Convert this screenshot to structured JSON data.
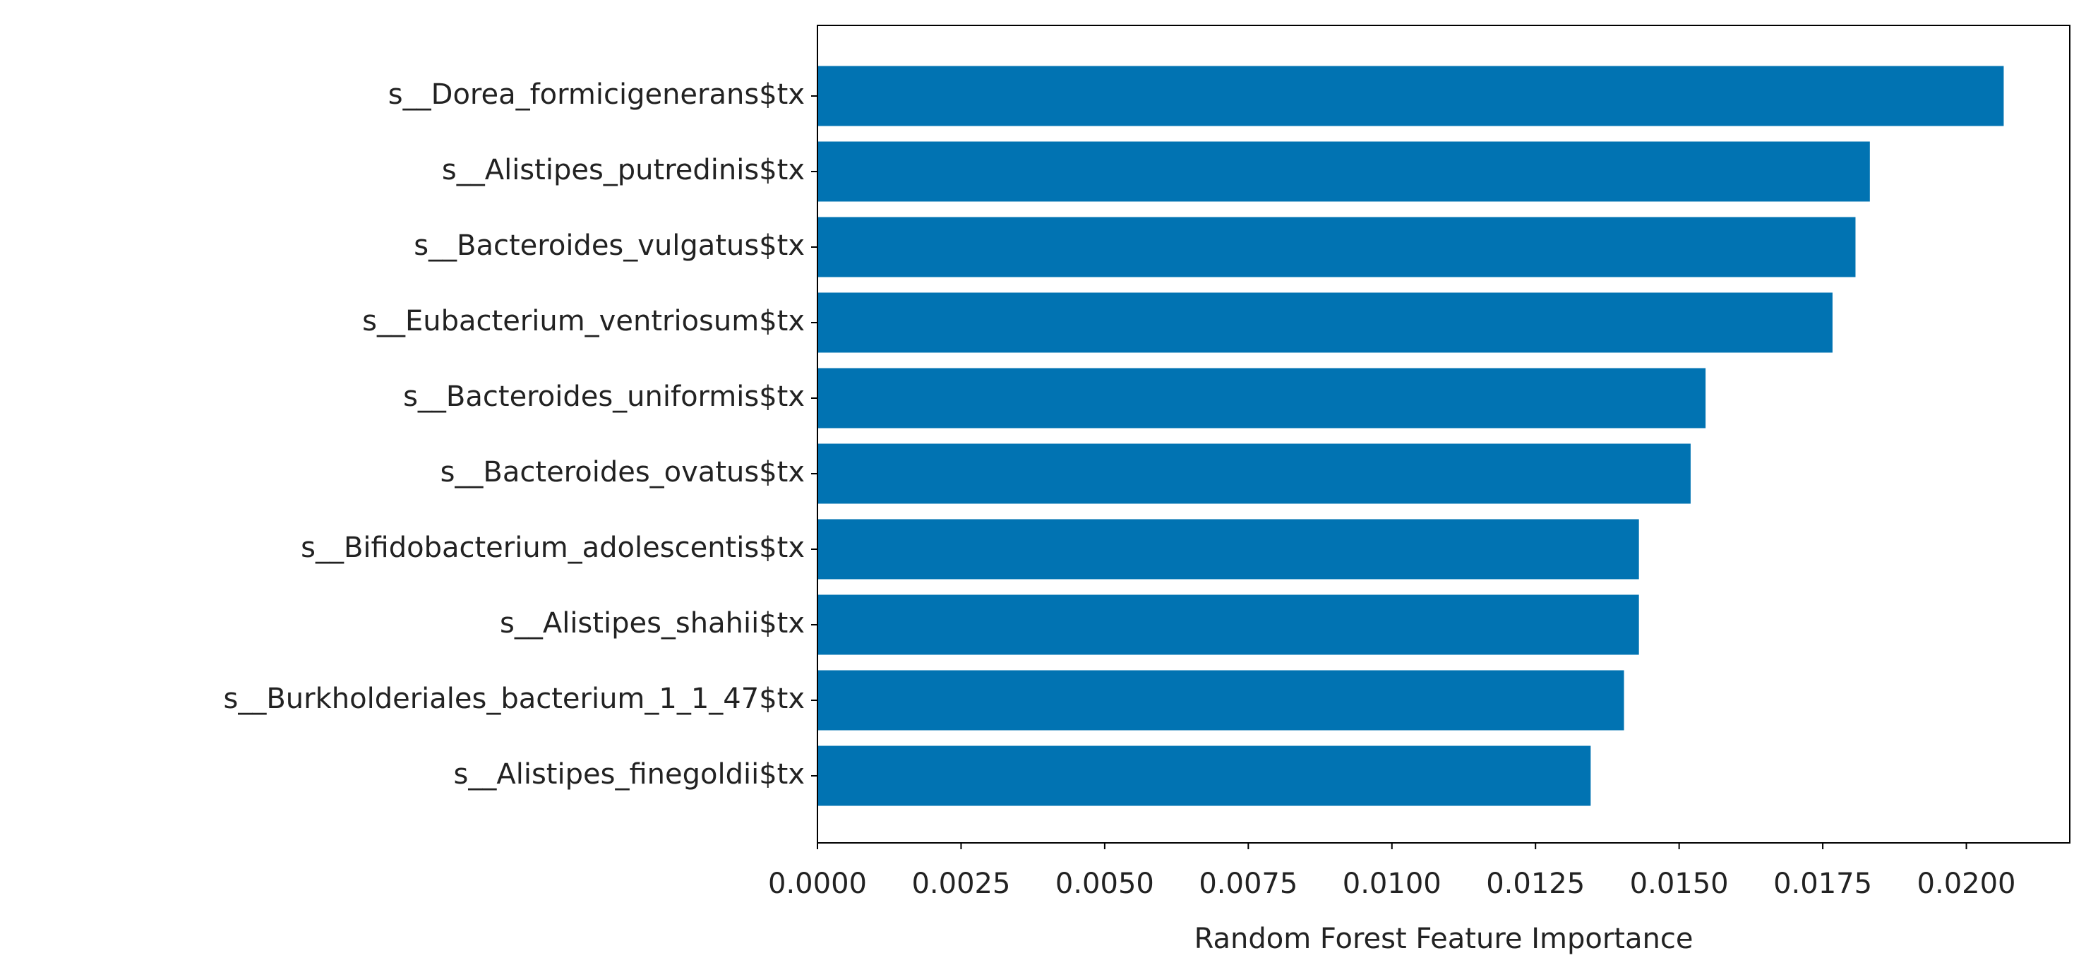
{
  "chart_data": {
    "type": "barh",
    "xlabel": "Random Forest Feature Importance",
    "categories": [
      "s__Dorea_formicigenerans$tx",
      "s__Alistipes_putredinis$tx",
      "s__Bacteroides_vulgatus$tx",
      "s__Eubacterium_ventriosum$tx",
      "s__Bacteroides_uniformis$tx",
      "s__Bacteroides_ovatus$tx",
      "s__Bifidobacterium_adolescentis$tx",
      "s__Alistipes_shahii$tx",
      "s__Burkholderiales_bacterium_1_1_47$tx",
      "s__Alistipes_finegoldii$tx"
    ],
    "values": [
      0.02065,
      0.01832,
      0.01807,
      0.01767,
      0.01546,
      0.0152,
      0.0143,
      0.0143,
      0.01404,
      0.01346
    ],
    "color": "#0173b2",
    "xlim": [
      0,
      0.0218
    ],
    "xticks": [
      {
        "value": 0,
        "label": "0.0000"
      },
      {
        "value": 0.0025,
        "label": "0.0025"
      },
      {
        "value": 0.005,
        "label": "0.0050"
      },
      {
        "value": 0.0075,
        "label": "0.0075"
      },
      {
        "value": 0.01,
        "label": "0.0100"
      },
      {
        "value": 0.0125,
        "label": "0.0125"
      },
      {
        "value": 0.015,
        "label": "0.0150"
      },
      {
        "value": 0.0175,
        "label": "0.0175"
      },
      {
        "value": 0.02,
        "label": "0.0200"
      }
    ],
    "grid": false
  }
}
